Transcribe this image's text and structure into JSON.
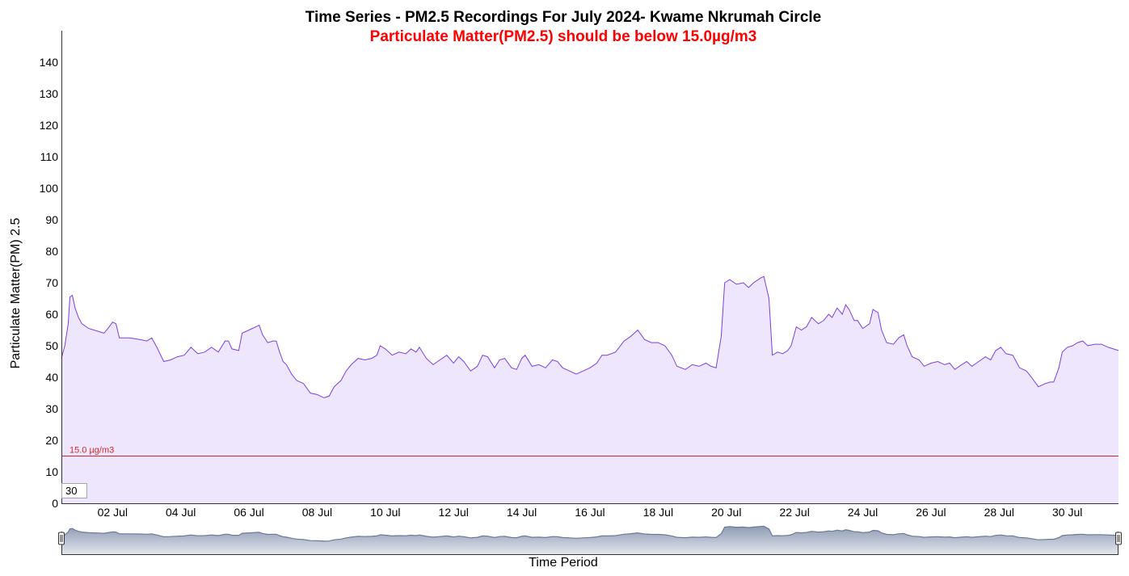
{
  "chart_data": {
    "type": "area",
    "title": "Time Series - PM2.5 Recordings For July 2024- Kwame Nkrumah Circle",
    "subtitle": "Particulate Matter(PM2.5) should be below 15.0µg/m3",
    "xlabel": "Time Period",
    "ylabel": "Particulate Matter(PM) 2.5",
    "ylim": [
      0,
      140
    ],
    "yticks": [
      0,
      10,
      20,
      30,
      40,
      50,
      60,
      70,
      80,
      90,
      100,
      110,
      120,
      130,
      140
    ],
    "xlim": [
      0.5,
      31.5
    ],
    "x_unit": "day of July 2024",
    "xticks": [
      {
        "day": 2,
        "label": "02 Jul"
      },
      {
        "day": 4,
        "label": "04 Jul"
      },
      {
        "day": 6,
        "label": "06 Jul"
      },
      {
        "day": 8,
        "label": "08 Jul"
      },
      {
        "day": 10,
        "label": "10 Jul"
      },
      {
        "day": 12,
        "label": "12 Jul"
      },
      {
        "day": 14,
        "label": "14 Jul"
      },
      {
        "day": 16,
        "label": "16 Jul"
      },
      {
        "day": 18,
        "label": "18 Jul"
      },
      {
        "day": 20,
        "label": "20 Jul"
      },
      {
        "day": 22,
        "label": "22 Jul"
      },
      {
        "day": 24,
        "label": "24 Jul"
      },
      {
        "day": 26,
        "label": "26 Jul"
      },
      {
        "day": 28,
        "label": "28 Jul"
      },
      {
        "day": 30,
        "label": "30 Jul"
      }
    ],
    "threshold": {
      "value": 15.0,
      "label": "15.0 µg/m3",
      "color": "#d62728"
    },
    "series": [
      {
        "color": "#7b3fe4",
        "fill": "#eee6fc",
        "points": [
          [
            0.5,
            46
          ],
          [
            0.6,
            50
          ],
          [
            0.7,
            57
          ],
          [
            0.75,
            65.5
          ],
          [
            0.82,
            66
          ],
          [
            0.9,
            62
          ],
          [
            1.0,
            59
          ],
          [
            1.1,
            57
          ],
          [
            1.3,
            55.5
          ],
          [
            1.6,
            54.5
          ],
          [
            1.75,
            54
          ],
          [
            1.9,
            56
          ],
          [
            2.0,
            57.5
          ],
          [
            2.1,
            57
          ],
          [
            2.2,
            52.5
          ],
          [
            2.5,
            52.5
          ],
          [
            2.8,
            52
          ],
          [
            3.0,
            51.5
          ],
          [
            3.15,
            52.5
          ],
          [
            3.3,
            49.5
          ],
          [
            3.5,
            45
          ],
          [
            3.7,
            45.5
          ],
          [
            3.9,
            46.5
          ],
          [
            4.1,
            47
          ],
          [
            4.3,
            49.5
          ],
          [
            4.4,
            48.5
          ],
          [
            4.5,
            47.5
          ],
          [
            4.7,
            48
          ],
          [
            4.9,
            49.5
          ],
          [
            5.1,
            48
          ],
          [
            5.3,
            51.5
          ],
          [
            5.4,
            51.5
          ],
          [
            5.5,
            49
          ],
          [
            5.7,
            48.5
          ],
          [
            5.8,
            54
          ],
          [
            6.0,
            55
          ],
          [
            6.2,
            56
          ],
          [
            6.3,
            56.5
          ],
          [
            6.4,
            53.5
          ],
          [
            6.55,
            51
          ],
          [
            6.7,
            51.5
          ],
          [
            6.8,
            51.5
          ],
          [
            6.9,
            48
          ],
          [
            7.0,
            45
          ],
          [
            7.1,
            44
          ],
          [
            7.25,
            41
          ],
          [
            7.4,
            39
          ],
          [
            7.6,
            38
          ],
          [
            7.8,
            35
          ],
          [
            8.0,
            34.5
          ],
          [
            8.2,
            33.5
          ],
          [
            8.35,
            34
          ],
          [
            8.5,
            37
          ],
          [
            8.7,
            39
          ],
          [
            8.85,
            42
          ],
          [
            9.0,
            44
          ],
          [
            9.2,
            46
          ],
          [
            9.4,
            45.5
          ],
          [
            9.6,
            46
          ],
          [
            9.75,
            47
          ],
          [
            9.85,
            50
          ],
          [
            10.0,
            49
          ],
          [
            10.2,
            47
          ],
          [
            10.4,
            48
          ],
          [
            10.6,
            47.5
          ],
          [
            10.75,
            49
          ],
          [
            10.9,
            48
          ],
          [
            11.0,
            49.5
          ],
          [
            11.2,
            46
          ],
          [
            11.4,
            44
          ],
          [
            11.6,
            45.5
          ],
          [
            11.8,
            47
          ],
          [
            12.0,
            44.5
          ],
          [
            12.15,
            46.5
          ],
          [
            12.3,
            45
          ],
          [
            12.5,
            42
          ],
          [
            12.7,
            43.5
          ],
          [
            12.85,
            47
          ],
          [
            13.0,
            46.5
          ],
          [
            13.2,
            43
          ],
          [
            13.35,
            45.5
          ],
          [
            13.5,
            46
          ],
          [
            13.7,
            43
          ],
          [
            13.85,
            42.5
          ],
          [
            14.0,
            46
          ],
          [
            14.1,
            47
          ],
          [
            14.3,
            43.5
          ],
          [
            14.5,
            44
          ],
          [
            14.7,
            43
          ],
          [
            14.9,
            45.5
          ],
          [
            15.05,
            45
          ],
          [
            15.2,
            43
          ],
          [
            15.4,
            42
          ],
          [
            15.6,
            41
          ],
          [
            15.8,
            42
          ],
          [
            16.0,
            43
          ],
          [
            16.2,
            44.5
          ],
          [
            16.35,
            47
          ],
          [
            16.5,
            47
          ],
          [
            16.75,
            48
          ],
          [
            17.0,
            51.5
          ],
          [
            17.2,
            53
          ],
          [
            17.4,
            55
          ],
          [
            17.6,
            52
          ],
          [
            17.8,
            51
          ],
          [
            18.0,
            51
          ],
          [
            18.2,
            50
          ],
          [
            18.4,
            47
          ],
          [
            18.55,
            43.5
          ],
          [
            18.8,
            42.5
          ],
          [
            19.0,
            44
          ],
          [
            19.2,
            43.5
          ],
          [
            19.4,
            44.5
          ],
          [
            19.55,
            43.5
          ],
          [
            19.7,
            43
          ],
          [
            19.85,
            53
          ],
          [
            19.95,
            70
          ],
          [
            20.1,
            71
          ],
          [
            20.3,
            69.5
          ],
          [
            20.5,
            70
          ],
          [
            20.65,
            68.5
          ],
          [
            20.8,
            70
          ],
          [
            21.0,
            71.5
          ],
          [
            21.1,
            72
          ],
          [
            21.25,
            65
          ],
          [
            21.35,
            47
          ],
          [
            21.5,
            48
          ],
          [
            21.65,
            47.5
          ],
          [
            21.8,
            48.5
          ],
          [
            21.9,
            50
          ],
          [
            22.05,
            56
          ],
          [
            22.2,
            55
          ],
          [
            22.35,
            56
          ],
          [
            22.5,
            59
          ],
          [
            22.7,
            57
          ],
          [
            22.85,
            58
          ],
          [
            23.0,
            60
          ],
          [
            23.1,
            59
          ],
          [
            23.25,
            62
          ],
          [
            23.4,
            60
          ],
          [
            23.5,
            63
          ],
          [
            23.6,
            61.5
          ],
          [
            23.75,
            58
          ],
          [
            23.85,
            58
          ],
          [
            24.0,
            55.5
          ],
          [
            24.2,
            57
          ],
          [
            24.3,
            61.5
          ],
          [
            24.45,
            60.5
          ],
          [
            24.55,
            55
          ],
          [
            24.7,
            51
          ],
          [
            24.9,
            50.5
          ],
          [
            25.05,
            52.5
          ],
          [
            25.2,
            53.5
          ],
          [
            25.3,
            50
          ],
          [
            25.45,
            46.5
          ],
          [
            25.65,
            45.5
          ],
          [
            25.8,
            43.5
          ],
          [
            26.0,
            44.5
          ],
          [
            26.2,
            45
          ],
          [
            26.4,
            44
          ],
          [
            26.55,
            44.5
          ],
          [
            26.7,
            42.5
          ],
          [
            26.9,
            44
          ],
          [
            27.05,
            45
          ],
          [
            27.2,
            43.5
          ],
          [
            27.4,
            45
          ],
          [
            27.6,
            46.5
          ],
          [
            27.75,
            45.5
          ],
          [
            27.9,
            48.5
          ],
          [
            28.05,
            49.5
          ],
          [
            28.2,
            47.5
          ],
          [
            28.4,
            47
          ],
          [
            28.5,
            45
          ],
          [
            28.6,
            43
          ],
          [
            28.8,
            42
          ],
          [
            28.95,
            40
          ],
          [
            29.15,
            37
          ],
          [
            29.35,
            38
          ],
          [
            29.5,
            38.5
          ],
          [
            29.6,
            38.5
          ],
          [
            29.75,
            43
          ],
          [
            29.85,
            48
          ],
          [
            30.0,
            49.5
          ],
          [
            30.15,
            50
          ],
          [
            30.3,
            51
          ],
          [
            30.45,
            51.5
          ],
          [
            30.6,
            50
          ],
          [
            30.8,
            50.5
          ],
          [
            31.0,
            50.5
          ],
          [
            31.2,
            49.5
          ],
          [
            31.35,
            49
          ],
          [
            31.5,
            48.5
          ]
        ]
      }
    ],
    "navigator": {
      "range_label": "30"
    },
    "legend": "none",
    "grid": false
  }
}
